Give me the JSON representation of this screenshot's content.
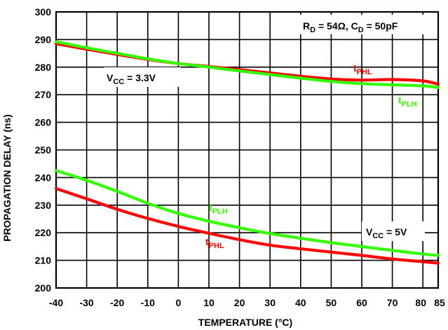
{
  "chart_data": {
    "type": "line",
    "xlabel": "TEMPERATURE (°C)",
    "ylabel": "PROPAGATION DELAY (ns)",
    "xlim": [
      -40,
      85
    ],
    "ylim": [
      200,
      300
    ],
    "grid": true,
    "x_ticks": [
      "-40",
      "-30",
      "-20",
      "-10",
      "0",
      "10",
      "20",
      "30",
      "40",
      "50",
      "60",
      "70",
      "80",
      "85"
    ],
    "y_ticks": [
      "200",
      "210",
      "220",
      "230",
      "240",
      "250",
      "260",
      "270",
      "280",
      "290",
      "300"
    ],
    "colors": {
      "tPHL": "#ff0000",
      "tPLH": "#33ff00"
    },
    "series": [
      {
        "name": "tPHL",
        "group": "VCC = 3.3V",
        "color": "#ff0000",
        "x": [
          -40,
          -30,
          -20,
          -10,
          0,
          10,
          20,
          30,
          40,
          50,
          60,
          70,
          80,
          85
        ],
        "y": [
          288.5,
          286.5,
          284.6,
          282.8,
          281.3,
          280.2,
          279.1,
          277.9,
          276.7,
          275.7,
          275.3,
          275.5,
          275.0,
          273.8
        ]
      },
      {
        "name": "tPLH",
        "group": "VCC = 3.3V",
        "color": "#33ff00",
        "x": [
          -40,
          -30,
          -20,
          -10,
          0,
          10,
          20,
          30,
          40,
          50,
          60,
          70,
          80,
          85
        ],
        "y": [
          289.2,
          287.0,
          285.0,
          283.0,
          281.3,
          280.0,
          278.6,
          277.3,
          276.0,
          274.8,
          274.0,
          273.6,
          273.2,
          272.6
        ]
      },
      {
        "name": "tPLH",
        "group": "VCC = 5V",
        "color": "#33ff00",
        "x": [
          -40,
          -30,
          -20,
          -10,
          0,
          10,
          20,
          30,
          40,
          50,
          60,
          70,
          80,
          85
        ],
        "y": [
          242.5,
          239.0,
          235.0,
          230.7,
          227.0,
          224.2,
          221.8,
          219.7,
          218.0,
          216.4,
          215.0,
          213.6,
          212.3,
          211.8
        ]
      },
      {
        "name": "tPHL",
        "group": "VCC = 5V",
        "color": "#ff0000",
        "x": [
          -40,
          -30,
          -20,
          -10,
          0,
          10,
          20,
          30,
          40,
          50,
          60,
          70,
          80,
          85
        ],
        "y": [
          236.0,
          232.3,
          228.5,
          225.2,
          222.3,
          219.8,
          217.5,
          215.5,
          214.2,
          213.0,
          211.8,
          210.5,
          209.5,
          209.0
        ]
      }
    ],
    "annotations": {
      "conditions": {
        "r_main": "R",
        "r_sub": "D",
        "r_val": " = 54Ω, ",
        "c_main": "C",
        "c_sub": "D",
        "c_val": " = 50pF"
      },
      "vcc_33": {
        "main": "V",
        "sub": "CC",
        "rest": " = 3.3V"
      },
      "vcc_5": {
        "main": "V",
        "sub": "CC",
        "rest": " = 5V"
      },
      "tphl_33": {
        "main": "t",
        "sub": "PHL"
      },
      "tplh_33": {
        "main": "t",
        "sub": "PLH"
      },
      "tplh_5": {
        "main": "t",
        "sub": "PLH"
      },
      "tphl_5": {
        "main": "t",
        "sub": "PHL"
      }
    }
  }
}
